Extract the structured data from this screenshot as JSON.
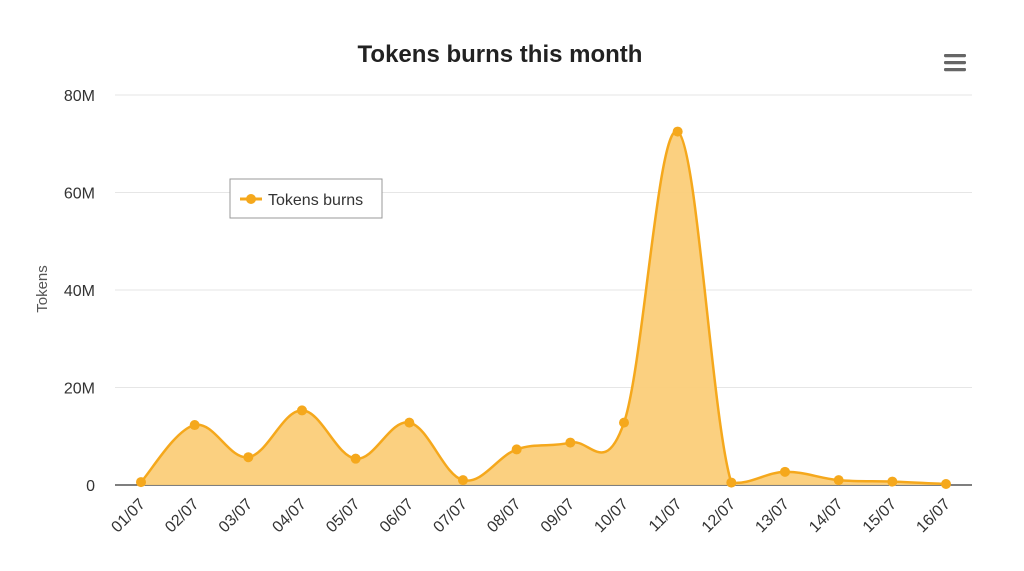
{
  "chart_data": {
    "type": "area",
    "title": "Tokens burns this month",
    "ylabel": "Tokens",
    "xlabel": "",
    "ylim": [
      0,
      80000000
    ],
    "yticks": [
      {
        "value": 0,
        "label": "0"
      },
      {
        "value": 20000000,
        "label": "20M"
      },
      {
        "value": 40000000,
        "label": "40M"
      },
      {
        "value": 60000000,
        "label": "60M"
      },
      {
        "value": 80000000,
        "label": "80M"
      }
    ],
    "categories": [
      "01/07",
      "02/07",
      "03/07",
      "04/07",
      "05/07",
      "06/07",
      "07/07",
      "08/07",
      "09/07",
      "10/07",
      "11/07",
      "12/07",
      "13/07",
      "14/07",
      "15/07",
      "16/07"
    ],
    "series": [
      {
        "name": "Tokens burns",
        "color": "#f5a81c",
        "fill": "#fbcd79",
        "values": [
          600000,
          12300000,
          5700000,
          15300000,
          5400000,
          12800000,
          1000000,
          7300000,
          8700000,
          12800000,
          72500000,
          500000,
          2700000,
          1000000,
          700000,
          200000
        ]
      }
    ],
    "grid": true,
    "legend_position": "upper-left"
  },
  "menu": {
    "icon": "hamburger-menu-icon"
  }
}
